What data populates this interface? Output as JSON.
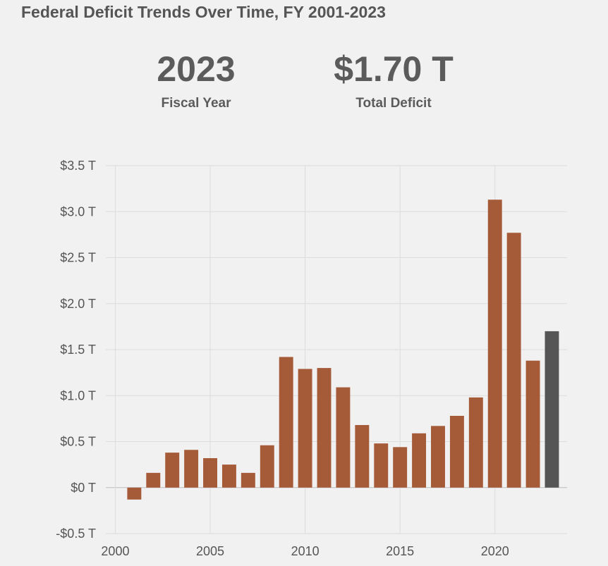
{
  "header": {
    "title": "Federal Deficit Trends Over Time, FY 2001-2023"
  },
  "stats": {
    "fiscal_year_value": "2023",
    "fiscal_year_label": "Fiscal Year",
    "deficit_value": "$1.70 T",
    "deficit_label": "Total Deficit"
  },
  "colors": {
    "bar": "#a55a38",
    "highlight_bar": "#555555",
    "background": "#f2f1f1"
  },
  "chart_data": {
    "type": "bar",
    "title": "Federal Deficit Trends Over Time, FY 2001-2023",
    "xlabel": "",
    "ylabel": "",
    "x": [
      2001,
      2002,
      2003,
      2004,
      2005,
      2006,
      2007,
      2008,
      2009,
      2010,
      2011,
      2012,
      2013,
      2014,
      2015,
      2016,
      2017,
      2018,
      2019,
      2020,
      2021,
      2022,
      2023
    ],
    "values": [
      -0.13,
      0.16,
      0.38,
      0.41,
      0.32,
      0.25,
      0.16,
      0.46,
      1.42,
      1.29,
      1.3,
      1.09,
      0.68,
      0.48,
      0.44,
      0.59,
      0.67,
      0.78,
      0.98,
      3.13,
      2.77,
      1.38,
      1.7
    ],
    "highlight": 2023,
    "xlim": [
      1999.5,
      2023.8
    ],
    "ylim": [
      -0.5,
      3.5
    ],
    "x_ticks": [
      2000,
      2005,
      2010,
      2015,
      2020
    ],
    "x_tick_labels": [
      "2000",
      "2005",
      "2010",
      "2015",
      "2020"
    ],
    "y_ticks": [
      -0.5,
      0,
      0.5,
      1.0,
      1.5,
      2.0,
      2.5,
      3.0,
      3.5
    ],
    "y_tick_labels": [
      "-$0.5 T",
      "$0 T",
      "$0.5 T",
      "$1.0 T",
      "$1.5 T",
      "$2.0 T",
      "$2.5 T",
      "$3.0 T",
      "$3.5 T"
    ],
    "grid": true
  }
}
